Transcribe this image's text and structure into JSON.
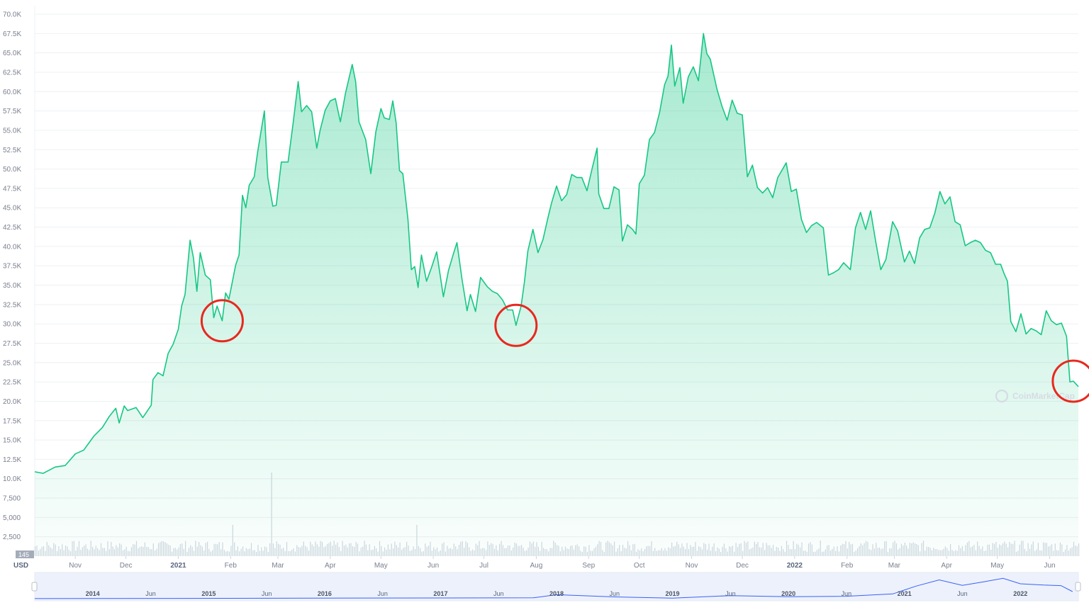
{
  "chart_data": {
    "type": "area",
    "currency_label": "USD",
    "watermark": "CoinMarketCap",
    "volume_axis_label": "145",
    "y_ticks": [
      "2,500",
      "5,000",
      "7,500",
      "10.0K",
      "12.5K",
      "15.0K",
      "17.5K",
      "20.0K",
      "22.5K",
      "25.0K",
      "27.5K",
      "30.0K",
      "32.5K",
      "35.0K",
      "37.5K",
      "40.0K",
      "42.5K",
      "45.0K",
      "47.5K",
      "50.0K",
      "52.5K",
      "55.0K",
      "57.5K",
      "60.0K",
      "62.5K",
      "65.0K",
      "67.5K",
      "70.0K"
    ],
    "ylim": [
      0,
      70000
    ],
    "x_ticks": [
      {
        "label": "Nov",
        "date": "2020-11-01",
        "bold": false
      },
      {
        "label": "Dec",
        "date": "2020-12-01",
        "bold": false
      },
      {
        "label": "2021",
        "date": "2021-01-01",
        "bold": true
      },
      {
        "label": "Feb",
        "date": "2021-02-01",
        "bold": false
      },
      {
        "label": "Mar",
        "date": "2021-03-01",
        "bold": false
      },
      {
        "label": "Apr",
        "date": "2021-04-01",
        "bold": false
      },
      {
        "label": "May",
        "date": "2021-05-01",
        "bold": false
      },
      {
        "label": "Jun",
        "date": "2021-06-01",
        "bold": false
      },
      {
        "label": "Jul",
        "date": "2021-07-01",
        "bold": false
      },
      {
        "label": "Aug",
        "date": "2021-08-01",
        "bold": false
      },
      {
        "label": "Sep",
        "date": "2021-09-01",
        "bold": false
      },
      {
        "label": "Oct",
        "date": "2021-10-01",
        "bold": false
      },
      {
        "label": "Nov",
        "date": "2021-11-01",
        "bold": false
      },
      {
        "label": "Dec",
        "date": "2021-12-01",
        "bold": false
      },
      {
        "label": "2022",
        "date": "2022-01-01",
        "bold": true
      },
      {
        "label": "Feb",
        "date": "2022-02-01",
        "bold": false
      },
      {
        "label": "Mar",
        "date": "2022-03-01",
        "bold": false
      },
      {
        "label": "Apr",
        "date": "2022-04-01",
        "bold": false
      },
      {
        "label": "May",
        "date": "2022-05-01",
        "bold": false
      },
      {
        "label": "Jun",
        "date": "2022-06-01",
        "bold": false
      }
    ],
    "x_range": [
      "2020-10-08",
      "2022-06-18"
    ],
    "series": [
      {
        "points": [
          [
            "2020-10-08",
            10900
          ],
          [
            "2020-10-13",
            10700
          ],
          [
            "2020-10-20",
            11500
          ],
          [
            "2020-10-26",
            11700
          ],
          [
            "2020-11-01",
            13200
          ],
          [
            "2020-11-06",
            13700
          ],
          [
            "2020-11-12",
            15500
          ],
          [
            "2020-11-17",
            16600
          ],
          [
            "2020-11-21",
            18000
          ],
          [
            "2020-11-25",
            19100
          ],
          [
            "2020-11-27",
            17200
          ],
          [
            "2020-11-30",
            19400
          ],
          [
            "2020-12-02",
            18800
          ],
          [
            "2020-12-07",
            19200
          ],
          [
            "2020-12-11",
            17900
          ],
          [
            "2020-12-16",
            19500
          ],
          [
            "2020-12-17",
            22800
          ],
          [
            "2020-12-20",
            23700
          ],
          [
            "2020-12-23",
            23300
          ],
          [
            "2020-12-26",
            26200
          ],
          [
            "2020-12-29",
            27400
          ],
          [
            "2021-01-01",
            29300
          ],
          [
            "2021-01-03",
            32300
          ],
          [
            "2021-01-05",
            33800
          ],
          [
            "2021-01-08",
            40800
          ],
          [
            "2021-01-10",
            38500
          ],
          [
            "2021-01-12",
            34200
          ],
          [
            "2021-01-14",
            39200
          ],
          [
            "2021-01-17",
            36300
          ],
          [
            "2021-01-20",
            35700
          ],
          [
            "2021-01-22",
            30800
          ],
          [
            "2021-01-24",
            32300
          ],
          [
            "2021-01-27",
            30400
          ],
          [
            "2021-01-29",
            34000
          ],
          [
            "2021-01-31",
            33200
          ],
          [
            "2021-02-04",
            37600
          ],
          [
            "2021-02-06",
            38900
          ],
          [
            "2021-02-08",
            46600
          ],
          [
            "2021-02-10",
            45000
          ],
          [
            "2021-02-12",
            47900
          ],
          [
            "2021-02-15",
            49000
          ],
          [
            "2021-02-17",
            52200
          ],
          [
            "2021-02-21",
            57500
          ],
          [
            "2021-02-23",
            48900
          ],
          [
            "2021-02-26",
            45200
          ],
          [
            "2021-02-28",
            45300
          ],
          [
            "2021-03-03",
            50900
          ],
          [
            "2021-03-07",
            50900
          ],
          [
            "2021-03-10",
            55900
          ],
          [
            "2021-03-13",
            61300
          ],
          [
            "2021-03-15",
            57400
          ],
          [
            "2021-03-18",
            58200
          ],
          [
            "2021-03-21",
            57400
          ],
          [
            "2021-03-24",
            52700
          ],
          [
            "2021-03-26",
            55000
          ],
          [
            "2021-03-29",
            57600
          ],
          [
            "2021-04-01",
            58800
          ],
          [
            "2021-04-04",
            59100
          ],
          [
            "2021-04-07",
            56100
          ],
          [
            "2021-04-10",
            59800
          ],
          [
            "2021-04-14",
            63500
          ],
          [
            "2021-04-16",
            61300
          ],
          [
            "2021-04-18",
            56100
          ],
          [
            "2021-04-22",
            53800
          ],
          [
            "2021-04-25",
            49400
          ],
          [
            "2021-04-28",
            54800
          ],
          [
            "2021-05-01",
            57800
          ],
          [
            "2021-05-03",
            56600
          ],
          [
            "2021-05-06",
            56400
          ],
          [
            "2021-05-08",
            58800
          ],
          [
            "2021-05-10",
            56000
          ],
          [
            "2021-05-12",
            49800
          ],
          [
            "2021-05-14",
            49400
          ],
          [
            "2021-05-17",
            43500
          ],
          [
            "2021-05-19",
            37000
          ],
          [
            "2021-05-21",
            37400
          ],
          [
            "2021-05-23",
            34700
          ],
          [
            "2021-05-25",
            38900
          ],
          [
            "2021-05-28",
            35500
          ],
          [
            "2021-05-31",
            37300
          ],
          [
            "2021-06-03",
            39300
          ],
          [
            "2021-06-07",
            33500
          ],
          [
            "2021-06-10",
            36900
          ],
          [
            "2021-06-13",
            39100
          ],
          [
            "2021-06-15",
            40500
          ],
          [
            "2021-06-18",
            35800
          ],
          [
            "2021-06-21",
            31700
          ],
          [
            "2021-06-23",
            33800
          ],
          [
            "2021-06-26",
            31600
          ],
          [
            "2021-06-29",
            36000
          ],
          [
            "2021-07-03",
            34800
          ],
          [
            "2021-07-06",
            34200
          ],
          [
            "2021-07-09",
            33900
          ],
          [
            "2021-07-12",
            33100
          ],
          [
            "2021-07-15",
            31800
          ],
          [
            "2021-07-18",
            31800
          ],
          [
            "2021-07-20",
            29800
          ],
          [
            "2021-07-23",
            32300
          ],
          [
            "2021-07-25",
            35400
          ],
          [
            "2021-07-27",
            39400
          ],
          [
            "2021-07-30",
            42200
          ],
          [
            "2021-08-02",
            39200
          ],
          [
            "2021-08-05",
            40900
          ],
          [
            "2021-08-08",
            43800
          ],
          [
            "2021-08-10",
            45600
          ],
          [
            "2021-08-13",
            47800
          ],
          [
            "2021-08-16",
            45900
          ],
          [
            "2021-08-19",
            46700
          ],
          [
            "2021-08-22",
            49300
          ],
          [
            "2021-08-25",
            48900
          ],
          [
            "2021-08-28",
            48900
          ],
          [
            "2021-08-31",
            47200
          ],
          [
            "2021-09-03",
            50000
          ],
          [
            "2021-09-06",
            52700
          ],
          [
            "2021-09-07",
            46800
          ],
          [
            "2021-09-10",
            44900
          ],
          [
            "2021-09-13",
            44900
          ],
          [
            "2021-09-16",
            47700
          ],
          [
            "2021-09-19",
            47300
          ],
          [
            "2021-09-21",
            40700
          ],
          [
            "2021-09-24",
            42800
          ],
          [
            "2021-09-27",
            42200
          ],
          [
            "2021-09-29",
            41600
          ],
          [
            "2021-10-01",
            48100
          ],
          [
            "2021-10-04",
            49200
          ],
          [
            "2021-10-07",
            53800
          ],
          [
            "2021-10-10",
            54700
          ],
          [
            "2021-10-13",
            57300
          ],
          [
            "2021-10-16",
            60900
          ],
          [
            "2021-10-18",
            62000
          ],
          [
            "2021-10-20",
            66000
          ],
          [
            "2021-10-22",
            60700
          ],
          [
            "2021-10-25",
            63100
          ],
          [
            "2021-10-27",
            58500
          ],
          [
            "2021-10-30",
            61900
          ],
          [
            "2021-11-02",
            63200
          ],
          [
            "2021-11-05",
            61400
          ],
          [
            "2021-11-08",
            67500
          ],
          [
            "2021-11-10",
            64900
          ],
          [
            "2021-11-12",
            64200
          ],
          [
            "2021-11-16",
            60300
          ],
          [
            "2021-11-19",
            58100
          ],
          [
            "2021-11-22",
            56300
          ],
          [
            "2021-11-25",
            58900
          ],
          [
            "2021-11-28",
            57200
          ],
          [
            "2021-12-01",
            57000
          ],
          [
            "2021-12-04",
            49000
          ],
          [
            "2021-12-07",
            50500
          ],
          [
            "2021-12-10",
            47600
          ],
          [
            "2021-12-13",
            46900
          ],
          [
            "2021-12-16",
            47600
          ],
          [
            "2021-12-19",
            46300
          ],
          [
            "2021-12-22",
            48900
          ],
          [
            "2021-12-27",
            50800
          ],
          [
            "2021-12-30",
            47100
          ],
          [
            "2022-01-02",
            47400
          ],
          [
            "2022-01-05",
            43500
          ],
          [
            "2022-01-08",
            41800
          ],
          [
            "2022-01-11",
            42700
          ],
          [
            "2022-01-14",
            43100
          ],
          [
            "2022-01-18",
            42400
          ],
          [
            "2022-01-21",
            36300
          ],
          [
            "2022-01-24",
            36600
          ],
          [
            "2022-01-27",
            37000
          ],
          [
            "2022-01-30",
            37900
          ],
          [
            "2022-02-03",
            37000
          ],
          [
            "2022-02-06",
            42400
          ],
          [
            "2022-02-09",
            44400
          ],
          [
            "2022-02-12",
            42200
          ],
          [
            "2022-02-15",
            44600
          ],
          [
            "2022-02-18",
            40600
          ],
          [
            "2022-02-21",
            37000
          ],
          [
            "2022-02-24",
            38300
          ],
          [
            "2022-02-28",
            43200
          ],
          [
            "2022-03-03",
            42000
          ],
          [
            "2022-03-07",
            38000
          ],
          [
            "2022-03-10",
            39400
          ],
          [
            "2022-03-13",
            37800
          ],
          [
            "2022-03-16",
            41100
          ],
          [
            "2022-03-19",
            42200
          ],
          [
            "2022-03-22",
            42400
          ],
          [
            "2022-03-25",
            44300
          ],
          [
            "2022-03-28",
            47100
          ],
          [
            "2022-03-31",
            45500
          ],
          [
            "2022-04-03",
            46400
          ],
          [
            "2022-04-06",
            43200
          ],
          [
            "2022-04-09",
            42800
          ],
          [
            "2022-04-12",
            40100
          ],
          [
            "2022-04-15",
            40500
          ],
          [
            "2022-04-18",
            40800
          ],
          [
            "2022-04-21",
            40500
          ],
          [
            "2022-04-24",
            39500
          ],
          [
            "2022-04-27",
            39200
          ],
          [
            "2022-04-30",
            37700
          ],
          [
            "2022-05-03",
            37700
          ],
          [
            "2022-05-05",
            36500
          ],
          [
            "2022-05-07",
            35500
          ],
          [
            "2022-05-09",
            30300
          ],
          [
            "2022-05-12",
            29000
          ],
          [
            "2022-05-15",
            31300
          ],
          [
            "2022-05-18",
            28700
          ],
          [
            "2022-05-21",
            29400
          ],
          [
            "2022-05-24",
            29100
          ],
          [
            "2022-05-27",
            28600
          ],
          [
            "2022-05-30",
            31700
          ],
          [
            "2022-06-02",
            30400
          ],
          [
            "2022-06-05",
            29900
          ],
          [
            "2022-06-08",
            30100
          ],
          [
            "2022-06-11",
            28400
          ],
          [
            "2022-06-13",
            22500
          ],
          [
            "2022-06-15",
            22600
          ],
          [
            "2022-06-18",
            21900
          ]
        ]
      }
    ],
    "navigator": {
      "x_ticks": [
        {
          "label": "2014",
          "bold": true
        },
        {
          "label": "Jun",
          "bold": false
        },
        {
          "label": "2015",
          "bold": true
        },
        {
          "label": "Jun",
          "bold": false
        },
        {
          "label": "2016",
          "bold": true
        },
        {
          "label": "Jun",
          "bold": false
        },
        {
          "label": "2017",
          "bold": true
        },
        {
          "label": "Jun",
          "bold": false
        },
        {
          "label": "2018",
          "bold": true
        },
        {
          "label": "Jun",
          "bold": false
        },
        {
          "label": "2019",
          "bold": true
        },
        {
          "label": "Jun",
          "bold": false
        },
        {
          "label": "2020",
          "bold": true
        },
        {
          "label": "Jun",
          "bold": false
        },
        {
          "label": "2021",
          "bold": true
        },
        {
          "label": "Jun",
          "bold": false
        },
        {
          "label": "2022",
          "bold": true
        }
      ]
    },
    "annotations": [
      {
        "type": "circle",
        "date": "2021-01-27",
        "value": 30400,
        "color": "#e8281e"
      },
      {
        "type": "circle",
        "date": "2021-07-20",
        "value": 29800,
        "color": "#e8281e"
      },
      {
        "type": "circle",
        "date": "2022-06-15",
        "value": 22600,
        "color": "#e8281e"
      }
    ],
    "colors": {
      "line": "#16c784",
      "fill": "#16c784",
      "grid": "#eef0f3",
      "nav_line": "#3861fb",
      "nav_fill": "#e6ebfa",
      "annotation": "#e8281e"
    }
  }
}
